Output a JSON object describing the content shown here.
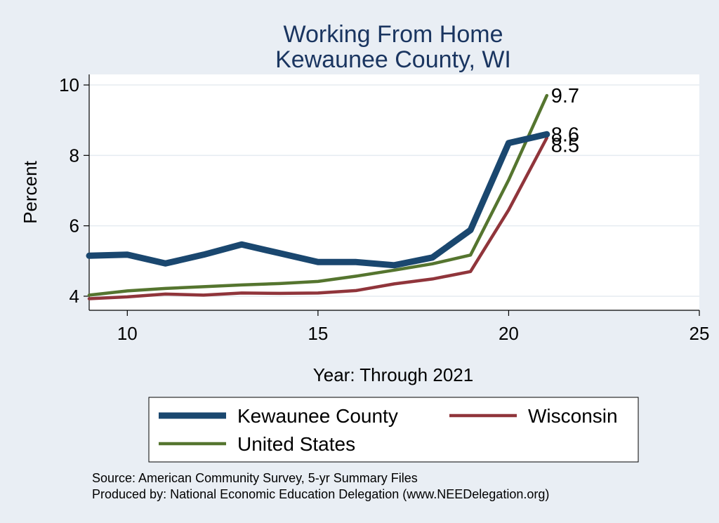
{
  "colors": {
    "background": "#e9eef4",
    "plot_background": "#ffffff",
    "title": "#1a3560",
    "grid": "#e5ebf1",
    "axis": "#000000"
  },
  "chart_data": {
    "type": "line",
    "title": "Working From Home",
    "subtitle": "Kewaunee County, WI",
    "xlabel": "Year: Through 2021",
    "ylabel": "Percent",
    "xlim": [
      9,
      25
    ],
    "ylim": [
      3.6,
      10.3
    ],
    "xticks": [
      10,
      15,
      20,
      25
    ],
    "yticks": [
      4,
      6,
      8,
      10
    ],
    "grid": true,
    "legend_position": "bottom",
    "series": [
      {
        "name": "Kewaunee County",
        "color": "#1a476f",
        "x": [
          9,
          10,
          11,
          12,
          13,
          14,
          15,
          16,
          17,
          18,
          19,
          20,
          21
        ],
        "values": [
          5.15,
          5.18,
          4.93,
          5.18,
          5.47,
          5.22,
          4.97,
          4.97,
          4.88,
          5.1,
          5.88,
          8.35,
          8.6
        ],
        "end_label": "8.6"
      },
      {
        "name": "Wisconsin",
        "color": "#90353b",
        "x": [
          9,
          10,
          11,
          12,
          13,
          14,
          15,
          16,
          17,
          18,
          19,
          20,
          21
        ],
        "values": [
          3.93,
          3.98,
          4.06,
          4.03,
          4.09,
          4.08,
          4.09,
          4.16,
          4.35,
          4.49,
          4.7,
          6.45,
          8.5
        ],
        "end_label": "8.5"
      },
      {
        "name": "United States",
        "color": "#55752f",
        "x": [
          9,
          10,
          11,
          12,
          13,
          14,
          15,
          16,
          17,
          18,
          19,
          20,
          21
        ],
        "values": [
          4.03,
          4.15,
          4.22,
          4.27,
          4.32,
          4.36,
          4.42,
          4.57,
          4.74,
          4.92,
          5.17,
          7.3,
          9.7
        ],
        "end_label": "9.7"
      }
    ],
    "notes": [
      "Source: American Community Survey, 5-yr Summary Files",
      "Produced by: National Economic Education Delegation (www.NEEDelegation.org)"
    ]
  }
}
